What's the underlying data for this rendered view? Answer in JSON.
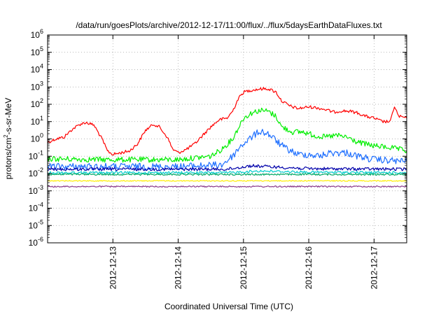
{
  "chart_data": {
    "type": "line",
    "title": "/data/run/goesPlots/archive/2012-12-17/11:00/flux/../flux/5daysEarthDataFluxes.txt",
    "xlabel": "Coordinated Universal Time (UTC)",
    "ylabel": {
      "prefix": "protons/cm",
      "sup": "2",
      "suffix": "-s-sr-MeV"
    },
    "yscale": "log",
    "ylim_exponent": [
      -6,
      6
    ],
    "y_ticks": [
      {
        "exp": -6,
        "base": "10",
        "sup": "-6"
      },
      {
        "exp": -5,
        "base": "10",
        "sup": "-5"
      },
      {
        "exp": -4,
        "base": "10",
        "sup": "-4"
      },
      {
        "exp": -3,
        "base": "10",
        "sup": "-3"
      },
      {
        "exp": -2,
        "base": "10",
        "sup": "-2"
      },
      {
        "exp": -1,
        "base": "10",
        "sup": "-1"
      },
      {
        "exp": 0,
        "base": "10",
        "sup": "0"
      },
      {
        "exp": 1,
        "base": "10",
        "sup": "1"
      },
      {
        "exp": 2,
        "base": "10",
        "sup": "2"
      },
      {
        "exp": 3,
        "base": "10",
        "sup": "3"
      },
      {
        "exp": 4,
        "base": "10",
        "sup": "4"
      },
      {
        "exp": 5,
        "base": "10",
        "sup": "5"
      },
      {
        "exp": 6,
        "base": "10",
        "sup": "6"
      }
    ],
    "xlim": [
      "2012-12-12T00:00",
      "2012-12-17T12:00"
    ],
    "x_ticks": [
      {
        "date": "2012-12-13T00:00",
        "label": "2012-12-13"
      },
      {
        "date": "2012-12-14T00:00",
        "label": "2012-12-14"
      },
      {
        "date": "2012-12-15T00:00",
        "label": "2012-12-15"
      },
      {
        "date": "2012-12-16T00:00",
        "label": "2012-12-16"
      },
      {
        "date": "2012-12-17T00:00",
        "label": "2012-12-17"
      }
    ],
    "grid": true,
    "series": [
      {
        "color": "#ff0000",
        "points": [
          [
            "2012-12-12T00:00",
            -0.2
          ],
          [
            "2012-12-12T03:00",
            0.0
          ],
          [
            "2012-12-12T06:00",
            0.1
          ],
          [
            "2012-12-12T09:00",
            0.55
          ],
          [
            "2012-12-12T12:00",
            0.85
          ],
          [
            "2012-12-12T14:00",
            0.95
          ],
          [
            "2012-12-12T17:00",
            0.8
          ],
          [
            "2012-12-12T20:00",
            0.0
          ],
          [
            "2012-12-12T22:00",
            -0.7
          ],
          [
            "2012-12-13T00:00",
            -0.9
          ],
          [
            "2012-12-13T03:00",
            -0.8
          ],
          [
            "2012-12-13T06:00",
            -0.7
          ],
          [
            "2012-12-13T09:00",
            -0.3
          ],
          [
            "2012-12-13T12:00",
            0.5
          ],
          [
            "2012-12-13T15:00",
            0.85
          ],
          [
            "2012-12-13T17:00",
            0.7
          ],
          [
            "2012-12-13T20:00",
            0.1
          ],
          [
            "2012-12-13T22:00",
            -0.6
          ],
          [
            "2012-12-14T00:00",
            -0.8
          ],
          [
            "2012-12-14T03:00",
            -0.6
          ],
          [
            "2012-12-14T06:00",
            -0.3
          ],
          [
            "2012-12-14T09:00",
            0.2
          ],
          [
            "2012-12-14T12:00",
            0.7
          ],
          [
            "2012-12-14T15:00",
            1.1
          ],
          [
            "2012-12-14T18:00",
            1.2
          ],
          [
            "2012-12-14T20:00",
            1.6
          ],
          [
            "2012-12-14T22:00",
            2.3
          ],
          [
            "2012-12-15T00:00",
            2.7
          ],
          [
            "2012-12-15T03:00",
            2.82
          ],
          [
            "2012-12-15T06:00",
            2.88
          ],
          [
            "2012-12-15T09:00",
            2.9
          ],
          [
            "2012-12-15T12:00",
            2.7
          ],
          [
            "2012-12-15T14:00",
            2.2
          ],
          [
            "2012-12-15T17:00",
            1.9
          ],
          [
            "2012-12-15T20:00",
            1.75
          ],
          [
            "2012-12-16T00:00",
            1.85
          ],
          [
            "2012-12-16T03:00",
            1.8
          ],
          [
            "2012-12-16T06:00",
            1.7
          ],
          [
            "2012-12-16T09:00",
            1.55
          ],
          [
            "2012-12-16T12:00",
            1.62
          ],
          [
            "2012-12-16T15:00",
            1.6
          ],
          [
            "2012-12-16T18:00",
            1.5
          ],
          [
            "2012-12-16T21:00",
            1.3
          ],
          [
            "2012-12-17T00:00",
            1.2
          ],
          [
            "2012-12-17T03:00",
            1.0
          ],
          [
            "2012-12-17T06:00",
            1.0
          ],
          [
            "2012-12-17T07:30",
            1.9
          ],
          [
            "2012-12-17T09:00",
            1.3
          ],
          [
            "2012-12-17T12:00",
            1.2
          ]
        ]
      },
      {
        "color": "#00ee00",
        "points": [
          [
            "2012-12-12T00:00",
            -1.15
          ],
          [
            "2012-12-13T00:00",
            -1.2
          ],
          [
            "2012-12-14T00:00",
            -1.2
          ],
          [
            "2012-12-14T12:00",
            -1.0
          ],
          [
            "2012-12-14T16:00",
            -0.6
          ],
          [
            "2012-12-14T20:00",
            0.0
          ],
          [
            "2012-12-14T22:00",
            0.6
          ],
          [
            "2012-12-15T00:00",
            1.2
          ],
          [
            "2012-12-15T03:00",
            1.5
          ],
          [
            "2012-12-15T06:00",
            1.65
          ],
          [
            "2012-12-15T09:00",
            1.6
          ],
          [
            "2012-12-15T12:00",
            1.3
          ],
          [
            "2012-12-15T14:00",
            0.7
          ],
          [
            "2012-12-15T18:00",
            0.4
          ],
          [
            "2012-12-15T22:00",
            0.4
          ],
          [
            "2012-12-16T02:00",
            0.2
          ],
          [
            "2012-12-16T06:00",
            0.1
          ],
          [
            "2012-12-16T10:00",
            0.2
          ],
          [
            "2012-12-16T14:00",
            0.1
          ],
          [
            "2012-12-16T18:00",
            -0.2
          ],
          [
            "2012-12-17T00:00",
            -0.4
          ],
          [
            "2012-12-17T06:00",
            -0.5
          ],
          [
            "2012-12-17T12:00",
            -0.7
          ]
        ]
      },
      {
        "color": "#1e6fff",
        "points": [
          [
            "2012-12-12T00:00",
            -1.6
          ],
          [
            "2012-12-13T00:00",
            -1.6
          ],
          [
            "2012-12-14T00:00",
            -1.6
          ],
          [
            "2012-12-14T16:00",
            -1.5
          ],
          [
            "2012-12-14T20:00",
            -1.0
          ],
          [
            "2012-12-14T23:00",
            -0.4
          ],
          [
            "2012-12-15T03:00",
            0.1
          ],
          [
            "2012-12-15T06:00",
            0.45
          ],
          [
            "2012-12-15T09:00",
            0.3
          ],
          [
            "2012-12-15T12:00",
            -0.1
          ],
          [
            "2012-12-15T15:00",
            -0.5
          ],
          [
            "2012-12-15T20:00",
            -0.9
          ],
          [
            "2012-12-16T00:00",
            -0.9
          ],
          [
            "2012-12-16T04:00",
            -1.0
          ],
          [
            "2012-12-16T08:00",
            -0.8
          ],
          [
            "2012-12-16T14:00",
            -0.8
          ],
          [
            "2012-12-16T18:00",
            -1.0
          ],
          [
            "2012-12-17T00:00",
            -1.2
          ],
          [
            "2012-12-17T12:00",
            -1.3
          ]
        ]
      },
      {
        "color": "#0000aa",
        "points": [
          [
            "2012-12-12T00:00",
            -1.75
          ],
          [
            "2012-12-14T18:00",
            -1.75
          ],
          [
            "2012-12-15T03:00",
            -1.55
          ],
          [
            "2012-12-15T09:00",
            -1.6
          ],
          [
            "2012-12-16T00:00",
            -1.72
          ],
          [
            "2012-12-17T12:00",
            -1.75
          ]
        ]
      },
      {
        "color": "#00cccc",
        "points": [
          [
            "2012-12-12T00:00",
            -1.95
          ],
          [
            "2012-12-14T18:00",
            -1.95
          ],
          [
            "2012-12-15T06:00",
            -1.85
          ],
          [
            "2012-12-16T00:00",
            -1.92
          ],
          [
            "2012-12-17T12:00",
            -1.95
          ]
        ]
      },
      {
        "color": "#00aa66",
        "points": [
          [
            "2012-12-12T00:00",
            -2.05
          ],
          [
            "2012-12-17T12:00",
            -2.05
          ]
        ]
      },
      {
        "color": "#ffee00",
        "points": [
          [
            "2012-12-12T00:00",
            -2.42
          ],
          [
            "2012-12-17T12:00",
            -2.42
          ]
        ]
      },
      {
        "color": "#8b3a8b",
        "points": [
          [
            "2012-12-12T00:00",
            -2.75
          ],
          [
            "2012-12-17T12:00",
            -2.75
          ]
        ]
      }
    ]
  }
}
